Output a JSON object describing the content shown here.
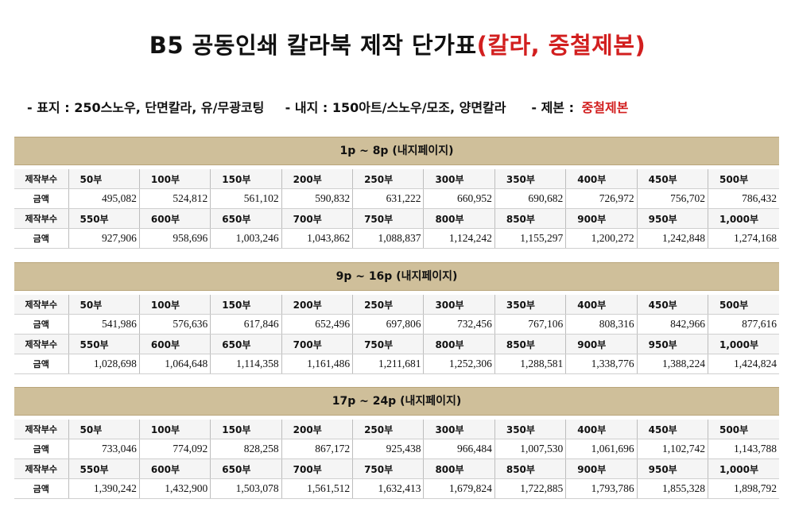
{
  "title": {
    "main": "B5 공동인쇄 칼라북 제작 단가표",
    "highlight": "(칼라, 중철제본)"
  },
  "specs": {
    "cover": "- 표지 : 250스노우, 단면칼라, 유/무광코팅",
    "inner": "- 내지 : 150아트/스노우/모조, 양면칼라",
    "binding_label": "- 제본 :",
    "binding_value": "중철제본"
  },
  "labels": {
    "quantity": "제작부수",
    "price": "금액"
  },
  "quantities_a": [
    "50부",
    "100부",
    "150부",
    "200부",
    "250부",
    "300부",
    "350부",
    "400부",
    "450부",
    "500부"
  ],
  "quantities_b": [
    "550부",
    "600부",
    "650부",
    "700부",
    "750부",
    "800부",
    "850부",
    "900부",
    "950부",
    "1,000부"
  ],
  "sections": [
    {
      "title": "1p ~ 8p (내지페이지)",
      "prices_a": [
        "495,082",
        "524,812",
        "561,102",
        "590,832",
        "631,222",
        "660,952",
        "690,682",
        "726,972",
        "756,702",
        "786,432"
      ],
      "prices_b": [
        "927,906",
        "958,696",
        "1,003,246",
        "1,043,862",
        "1,088,837",
        "1,124,242",
        "1,155,297",
        "1,200,272",
        "1,242,848",
        "1,274,168"
      ]
    },
    {
      "title": "9p ~ 16p (내지페이지)",
      "prices_a": [
        "541,986",
        "576,636",
        "617,846",
        "652,496",
        "697,806",
        "732,456",
        "767,106",
        "808,316",
        "842,966",
        "877,616"
      ],
      "prices_b": [
        "1,028,698",
        "1,064,648",
        "1,114,358",
        "1,161,486",
        "1,211,681",
        "1,252,306",
        "1,288,581",
        "1,338,776",
        "1,388,224",
        "1,424,824"
      ]
    },
    {
      "title": "17p ~ 24p (내지페이지)",
      "prices_a": [
        "733,046",
        "774,092",
        "828,258",
        "867,172",
        "925,438",
        "966,484",
        "1,007,530",
        "1,061,696",
        "1,102,742",
        "1,143,788"
      ],
      "prices_b": [
        "1,390,242",
        "1,432,900",
        "1,503,078",
        "1,561,512",
        "1,632,413",
        "1,679,824",
        "1,722,885",
        "1,793,786",
        "1,855,328",
        "1,898,792"
      ]
    }
  ]
}
